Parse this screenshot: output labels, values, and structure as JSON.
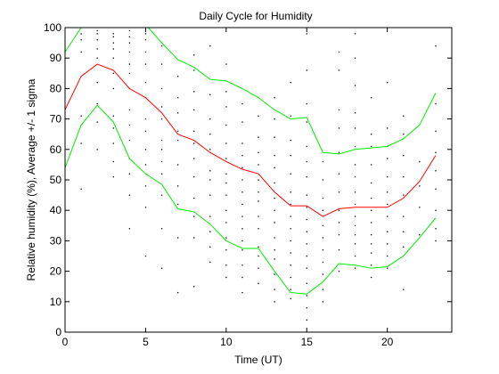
{
  "chart_data": {
    "type": "line",
    "title": "Daily Cycle for Humidity",
    "xlabel": "Time (UT)",
    "ylabel": "Relative humidity (%), Average +/- 1 sigma",
    "xlim": [
      0,
      24
    ],
    "ylim": [
      0,
      100
    ],
    "xticks": [
      0,
      5,
      10,
      15,
      20
    ],
    "yticks": [
      0,
      10,
      20,
      30,
      40,
      50,
      60,
      70,
      80,
      90,
      100
    ],
    "grid": false,
    "legend": "none",
    "x": [
      0,
      1,
      2,
      3,
      4,
      5,
      6,
      7,
      8,
      9,
      10,
      11,
      12,
      13,
      14,
      15,
      16,
      17,
      18,
      19,
      20,
      21,
      22,
      23
    ],
    "series": [
      {
        "role": "average",
        "color": "#ff0000",
        "values": [
          73,
          84,
          88,
          86,
          80,
          77,
          72,
          65,
          63,
          59,
          56,
          53.5,
          52,
          46,
          41.5,
          41.5,
          38,
          40.5,
          41,
          41,
          41,
          44,
          49.5,
          58
        ]
      },
      {
        "role": "plus-one-sigma",
        "color": "#00ee00",
        "values": [
          92,
          100,
          101,
          103,
          105,
          101,
          95,
          89.5,
          87,
          83,
          82.5,
          80,
          77,
          73,
          70,
          70.5,
          59,
          58.5,
          60,
          60.5,
          61,
          63.5,
          68,
          78.5
        ]
      },
      {
        "role": "minus-one-sigma",
        "color": "#00ee00",
        "values": [
          54,
          68,
          74.5,
          69,
          57,
          52,
          48.5,
          40.5,
          39.5,
          35.5,
          30,
          27.5,
          27.5,
          20,
          13,
          12.5,
          16.5,
          22.5,
          22,
          21,
          21.5,
          25,
          31,
          37.5
        ]
      }
    ],
    "scatter": {
      "color": "#000000",
      "note_free": true,
      "points": [
        [
          1,
          47
        ],
        [
          1,
          62
        ],
        [
          1,
          71
        ],
        [
          1,
          92
        ],
        [
          1,
          96
        ],
        [
          1,
          98
        ],
        [
          2,
          60
        ],
        [
          2,
          69
        ],
        [
          2,
          75
        ],
        [
          2,
          82
        ],
        [
          2,
          90
        ],
        [
          2,
          93
        ],
        [
          2,
          96
        ],
        [
          2,
          98
        ],
        [
          2,
          99
        ],
        [
          3,
          51
        ],
        [
          3,
          56
        ],
        [
          3,
          62
        ],
        [
          3,
          67
        ],
        [
          3,
          71
        ],
        [
          3,
          80
        ],
        [
          3,
          85
        ],
        [
          3,
          90
        ],
        [
          3,
          93
        ],
        [
          3,
          95
        ],
        [
          3,
          97
        ],
        [
          3,
          98
        ],
        [
          4,
          34
        ],
        [
          4,
          45
        ],
        [
          4,
          52
        ],
        [
          4,
          57
        ],
        [
          4,
          63
        ],
        [
          4,
          68
        ],
        [
          4,
          73
        ],
        [
          4,
          80
        ],
        [
          4,
          85
        ],
        [
          4,
          88
        ],
        [
          4,
          92
        ],
        [
          4,
          95
        ],
        [
          4,
          97
        ],
        [
          4,
          99
        ],
        [
          5,
          25
        ],
        [
          5,
          41
        ],
        [
          5,
          48
        ],
        [
          5,
          55
        ],
        [
          5,
          60
        ],
        [
          5,
          66
        ],
        [
          5,
          70
        ],
        [
          5,
          77
        ],
        [
          5,
          82
        ],
        [
          5,
          88
        ],
        [
          5,
          92
        ],
        [
          5,
          96
        ],
        [
          5,
          98
        ],
        [
          6,
          21
        ],
        [
          6,
          34
        ],
        [
          6,
          45
        ],
        [
          6,
          52
        ],
        [
          6,
          56
        ],
        [
          6,
          60
        ],
        [
          6,
          63
        ],
        [
          6,
          70
        ],
        [
          6,
          74
        ],
        [
          6,
          80
        ],
        [
          6,
          88
        ],
        [
          6,
          94
        ],
        [
          7,
          13
        ],
        [
          7,
          31
        ],
        [
          7,
          42
        ],
        [
          7,
          48
        ],
        [
          7,
          55
        ],
        [
          7,
          63
        ],
        [
          7,
          66
        ],
        [
          7,
          72
        ],
        [
          7,
          77
        ],
        [
          7,
          84
        ],
        [
          8,
          15
        ],
        [
          8,
          31
        ],
        [
          8,
          38
        ],
        [
          8,
          44
        ],
        [
          8,
          51
        ],
        [
          8,
          57
        ],
        [
          8,
          62
        ],
        [
          8,
          66
        ],
        [
          8,
          73
        ],
        [
          8,
          79
        ],
        [
          8,
          86
        ],
        [
          8,
          91
        ],
        [
          9,
          23
        ],
        [
          9,
          28
        ],
        [
          9,
          33
        ],
        [
          9,
          38
        ],
        [
          9,
          45
        ],
        [
          9,
          50
        ],
        [
          9,
          53
        ],
        [
          9,
          60
        ],
        [
          9,
          65
        ],
        [
          9,
          70
        ],
        [
          9,
          78
        ],
        [
          9,
          94
        ],
        [
          10,
          18
        ],
        [
          10,
          22
        ],
        [
          10,
          27
        ],
        [
          10,
          31
        ],
        [
          10,
          36
        ],
        [
          10,
          40
        ],
        [
          10,
          45
        ],
        [
          10,
          49
        ],
        [
          10,
          52
        ],
        [
          10,
          57
        ],
        [
          10,
          62
        ],
        [
          10,
          68
        ],
        [
          10,
          74
        ],
        [
          10,
          79
        ],
        [
          10,
          88
        ],
        [
          11,
          13
        ],
        [
          11,
          18
        ],
        [
          11,
          22
        ],
        [
          11,
          27
        ],
        [
          11,
          30
        ],
        [
          11,
          34
        ],
        [
          11,
          38
        ],
        [
          11,
          42
        ],
        [
          11,
          46
        ],
        [
          11,
          50
        ],
        [
          11,
          54
        ],
        [
          11,
          58
        ],
        [
          11,
          62
        ],
        [
          11,
          69
        ],
        [
          11,
          75
        ],
        [
          12,
          16
        ],
        [
          12,
          21
        ],
        [
          12,
          25
        ],
        [
          12,
          28
        ],
        [
          12,
          34
        ],
        [
          12,
          38
        ],
        [
          12,
          43
        ],
        [
          12,
          46
        ],
        [
          12,
          50
        ],
        [
          12,
          55
        ],
        [
          12,
          59
        ],
        [
          12,
          64
        ],
        [
          12,
          71
        ],
        [
          13,
          10
        ],
        [
          13,
          14
        ],
        [
          13,
          19
        ],
        [
          13,
          24
        ],
        [
          13,
          27
        ],
        [
          13,
          31
        ],
        [
          13,
          36
        ],
        [
          13,
          40
        ],
        [
          13,
          44
        ],
        [
          13,
          49
        ],
        [
          13,
          54
        ],
        [
          13,
          58
        ],
        [
          13,
          64
        ],
        [
          13,
          70
        ],
        [
          13,
          77
        ],
        [
          14,
          11
        ],
        [
          14,
          14
        ],
        [
          14,
          18
        ],
        [
          14,
          22
        ],
        [
          14,
          26
        ],
        [
          14,
          30
        ],
        [
          14,
          34
        ],
        [
          14,
          38
        ],
        [
          14,
          42
        ],
        [
          14,
          46
        ],
        [
          14,
          52
        ],
        [
          14,
          58
        ],
        [
          14,
          63
        ],
        [
          14,
          71
        ],
        [
          14,
          82
        ],
        [
          15,
          4
        ],
        [
          15,
          8
        ],
        [
          15,
          12
        ],
        [
          15,
          16
        ],
        [
          15,
          21
        ],
        [
          15,
          25
        ],
        [
          15,
          29
        ],
        [
          15,
          33
        ],
        [
          15,
          37
        ],
        [
          15,
          41
        ],
        [
          15,
          45
        ],
        [
          15,
          51
        ],
        [
          15,
          56
        ],
        [
          15,
          61
        ],
        [
          15,
          69
        ],
        [
          15,
          75
        ],
        [
          15,
          86
        ],
        [
          15,
          98
        ],
        [
          16,
          10
        ],
        [
          16,
          14
        ],
        [
          16,
          19
        ],
        [
          16,
          23
        ],
        [
          16,
          27
        ],
        [
          16,
          31
        ],
        [
          16,
          35
        ],
        [
          16,
          40
        ],
        [
          16,
          44
        ],
        [
          16,
          50
        ],
        [
          16,
          56
        ],
        [
          17,
          20
        ],
        [
          17,
          27
        ],
        [
          17,
          32
        ],
        [
          17,
          36
        ],
        [
          17,
          40
        ],
        [
          17,
          46
        ],
        [
          17,
          52
        ],
        [
          17,
          59
        ],
        [
          17,
          67
        ],
        [
          17,
          73
        ],
        [
          17,
          86
        ],
        [
          17,
          92
        ],
        [
          18,
          21
        ],
        [
          18,
          25
        ],
        [
          18,
          29
        ],
        [
          18,
          32
        ],
        [
          18,
          35
        ],
        [
          18,
          38
        ],
        [
          18,
          42
        ],
        [
          18,
          46
        ],
        [
          18,
          51
        ],
        [
          18,
          55
        ],
        [
          18,
          61
        ],
        [
          18,
          67
        ],
        [
          18,
          72
        ],
        [
          18,
          81
        ],
        [
          18,
          90
        ],
        [
          18,
          98
        ],
        [
          19,
          18
        ],
        [
          19,
          22
        ],
        [
          19,
          26
        ],
        [
          19,
          29
        ],
        [
          19,
          32
        ],
        [
          19,
          36
        ],
        [
          19,
          40
        ],
        [
          19,
          44
        ],
        [
          19,
          49
        ],
        [
          19,
          55
        ],
        [
          19,
          61
        ],
        [
          19,
          65
        ],
        [
          19,
          77
        ],
        [
          20,
          21
        ],
        [
          20,
          25
        ],
        [
          20,
          29
        ],
        [
          20,
          33
        ],
        [
          20,
          38
        ],
        [
          20,
          42
        ],
        [
          20,
          46
        ],
        [
          20,
          51
        ],
        [
          20,
          57
        ],
        [
          20,
          61
        ],
        [
          20,
          67
        ],
        [
          20,
          82
        ],
        [
          21,
          14
        ],
        [
          21,
          28
        ],
        [
          21,
          33
        ],
        [
          21,
          38
        ],
        [
          21,
          45
        ],
        [
          21,
          51
        ],
        [
          21,
          58
        ],
        [
          21,
          65
        ],
        [
          21,
          71
        ],
        [
          22,
          32
        ],
        [
          22,
          41
        ],
        [
          22,
          48
        ],
        [
          22,
          56
        ],
        [
          23,
          30
        ],
        [
          23,
          34
        ],
        [
          23,
          40
        ],
        [
          23,
          47
        ],
        [
          23,
          53
        ],
        [
          23,
          59
        ],
        [
          23,
          66
        ],
        [
          23,
          75
        ],
        [
          23,
          94
        ]
      ]
    }
  }
}
